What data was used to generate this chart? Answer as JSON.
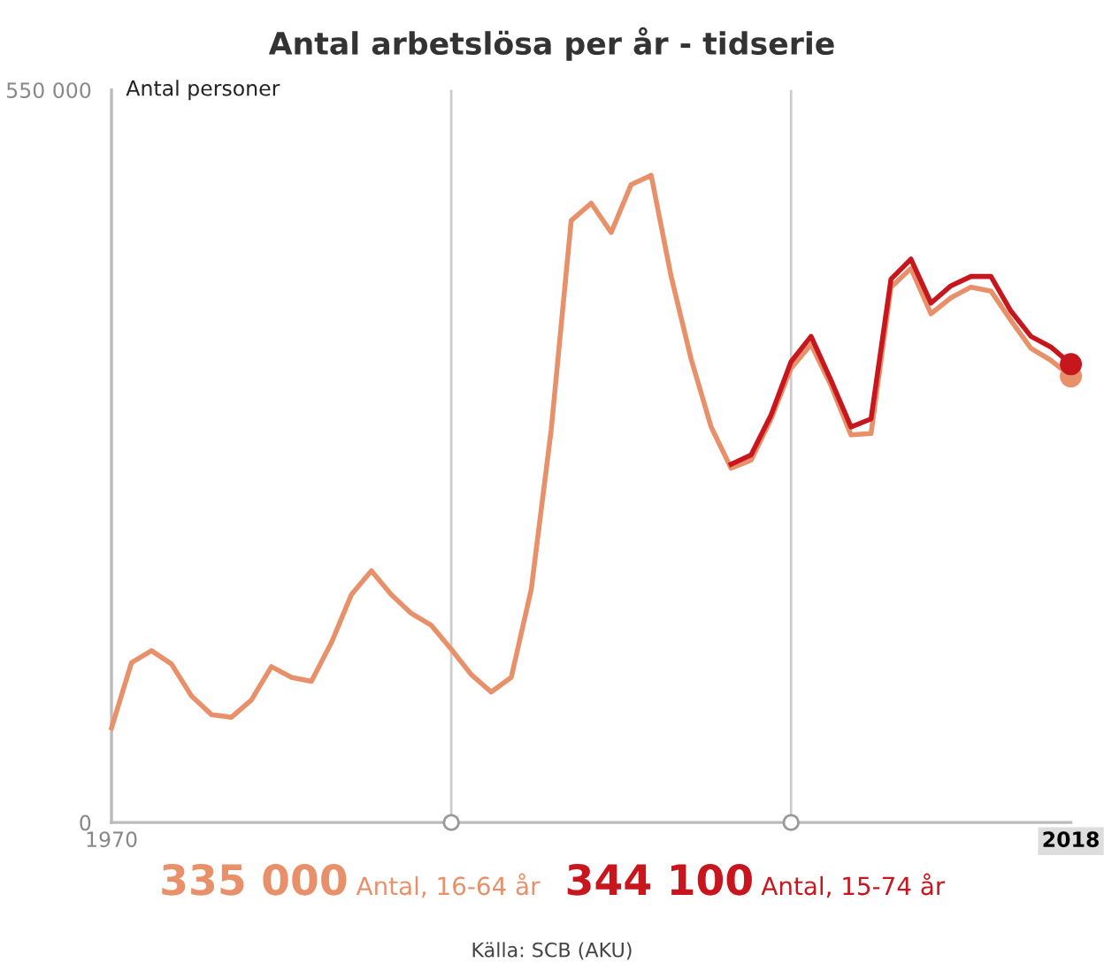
{
  "chart_data": {
    "type": "line",
    "title": "Antal arbetslösa per år - tidserie",
    "ylabel": "Antal personer",
    "x": [
      1970,
      1971,
      1972,
      1973,
      1974,
      1975,
      1976,
      1977,
      1978,
      1979,
      1980,
      1981,
      1982,
      1983,
      1984,
      1985,
      1986,
      1987,
      1988,
      1989,
      1990,
      1991,
      1992,
      1993,
      1994,
      1995,
      1996,
      1997,
      1998,
      1999,
      2000,
      2001,
      2002,
      2003,
      2004,
      2005,
      2006,
      2007,
      2008,
      2009,
      2010,
      2011,
      2012,
      2013,
      2014,
      2015,
      2016,
      2017,
      2018
    ],
    "series": [
      {
        "name": "Antal, 16-64 år",
        "color": "#e8906a",
        "values": [
          71000,
          120000,
          129000,
          119000,
          95000,
          81000,
          79000,
          92000,
          117000,
          109000,
          106000,
          135000,
          171000,
          189000,
          171000,
          157000,
          148000,
          130000,
          111000,
          98000,
          109000,
          175000,
          295000,
          452000,
          465000,
          443000,
          479000,
          486000,
          410000,
          348000,
          297000,
          266000,
          272000,
          303000,
          341000,
          359000,
          328000,
          291000,
          292000,
          402000,
          416000,
          382000,
          394000,
          402000,
          399000,
          377000,
          356000,
          347000,
          335000
        ]
      },
      {
        "name": "Antal, 15-74 år",
        "color": "#c8161e",
        "x": [
          2001,
          2002,
          2003,
          2004,
          2005,
          2006,
          2007,
          2008,
          2009,
          2010,
          2011,
          2012,
          2013,
          2014,
          2015,
          2016,
          2017,
          2018
        ],
        "values": [
          269000,
          276000,
          306000,
          346000,
          365000,
          332000,
          297000,
          303000,
          408000,
          423000,
          390000,
          403000,
          410000,
          410000,
          384000,
          365000,
          357000,
          344100
        ]
      }
    ],
    "xlim": [
      1970,
      2018
    ],
    "ylim": [
      0,
      550000
    ],
    "xticks": [
      1970,
      2018
    ],
    "yticks": [
      0,
      {
        "value": 550000,
        "label": "550 000"
      }
    ],
    "ref_lines": [
      {
        "axis": "x",
        "value": 1987,
        "color": "#cccccc"
      },
      {
        "axis": "x",
        "value": 2004,
        "color": "#cccccc"
      }
    ],
    "annotations": [
      "335 000",
      "344 100",
      "Källa: SCB (AKU)"
    ],
    "legend": "bottom",
    "grid": false
  }
}
